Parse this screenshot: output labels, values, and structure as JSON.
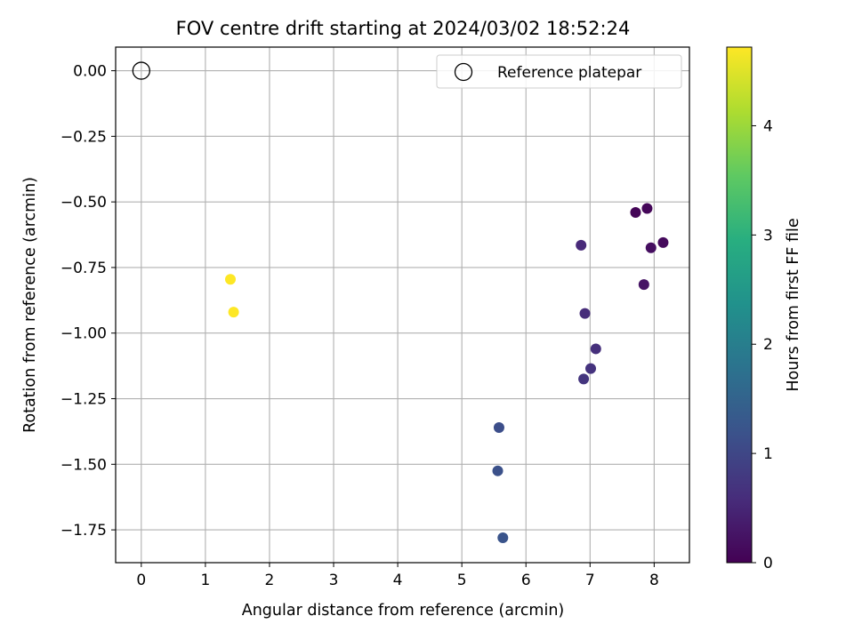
{
  "chart_data": {
    "type": "scatter",
    "title": "FOV centre drift starting at 2024/03/02 18:52:24",
    "xlabel": "Angular distance from reference (arcmin)",
    "ylabel": "Rotation from reference (arcmin)",
    "xlim": [
      -0.4,
      8.55
    ],
    "ylim": [
      -1.875,
      0.09
    ],
    "x_ticks": [
      0,
      1,
      2,
      3,
      4,
      5,
      6,
      7,
      8
    ],
    "y_ticks": [
      0.0,
      -0.25,
      -0.5,
      -0.75,
      -1.0,
      -1.25,
      -1.5,
      -1.75
    ],
    "y_tick_labels": [
      "0.00",
      "−0.25",
      "−0.50",
      "−0.75",
      "−1.00",
      "−1.25",
      "−1.50",
      "−1.75"
    ],
    "grid": true,
    "legend": {
      "placement": "upper-right",
      "entries": [
        "Reference platepar"
      ]
    },
    "reference_point": {
      "x": 0,
      "y": 0
    },
    "colorbar": {
      "label": "Hours from first FF file",
      "range": [
        0,
        4.72
      ],
      "ticks": [
        0,
        1,
        2,
        3,
        4
      ],
      "colormap": "viridis"
    },
    "points": [
      {
        "x": 7.71,
        "y": -0.54,
        "hours": 0.05
      },
      {
        "x": 7.89,
        "y": -0.525,
        "hours": 0.08
      },
      {
        "x": 8.14,
        "y": -0.655,
        "hours": 0.12
      },
      {
        "x": 7.95,
        "y": -0.675,
        "hours": 0.18
      },
      {
        "x": 7.84,
        "y": -0.815,
        "hours": 0.25
      },
      {
        "x": 6.86,
        "y": -0.665,
        "hours": 0.55
      },
      {
        "x": 6.92,
        "y": -0.925,
        "hours": 0.6
      },
      {
        "x": 7.09,
        "y": -1.06,
        "hours": 0.65
      },
      {
        "x": 7.01,
        "y": -1.135,
        "hours": 0.7
      },
      {
        "x": 6.9,
        "y": -1.175,
        "hours": 0.72
      },
      {
        "x": 5.58,
        "y": -1.36,
        "hours": 1.12
      },
      {
        "x": 5.56,
        "y": -1.525,
        "hours": 1.17
      },
      {
        "x": 5.64,
        "y": -1.78,
        "hours": 1.22
      },
      {
        "x": 1.39,
        "y": -0.795,
        "hours": 4.72
      },
      {
        "x": 1.44,
        "y": -0.92,
        "hours": 4.72
      }
    ]
  }
}
